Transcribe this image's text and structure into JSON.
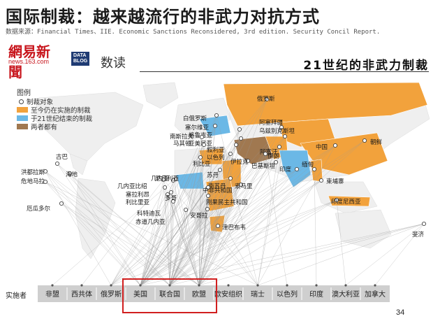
{
  "header": {
    "title": "国际制裁：越来越流行的非武力对抗方式",
    "source": "数据来源：Financial Times、IIE. Economic Sanctions Reconsidered, 3rd edition. Security Concil Report.",
    "subtitle": "21世纪的非武力制裁"
  },
  "brand": {
    "netease_cn": "網易新聞",
    "netease_en": "news.163.com",
    "datablog_line1": "DATA",
    "datablog_line2": "BLOG",
    "shudu": "数读"
  },
  "colors": {
    "ongoing": "#f2a23c",
    "ended": "#6bb8e6",
    "both": "#a07850",
    "land": "#efefef",
    "implementer_bar": "#cfcfcf",
    "highlight": "#d11f1f"
  },
  "legend": {
    "title": "图例",
    "target_label": "制裁对象",
    "items": [
      {
        "label": "至今仍在实施的制裁",
        "color": "#f2a23c"
      },
      {
        "label": "于21世纪结束的制裁",
        "color": "#6bb8e6"
      },
      {
        "label": "两者都有",
        "color": "#a07850"
      }
    ]
  },
  "chart_data": {
    "type": "network",
    "title": "21世纪的非武力制裁",
    "implementers_label": "实施者",
    "implementers": [
      "非盟",
      "西共体",
      "俄罗斯",
      "美国",
      "联合国",
      "欧盟",
      "欧安组织",
      "瑞士",
      "以色列",
      "印度",
      "澳大利亚",
      "加拿大"
    ],
    "highlighted_implementers": [
      "美国",
      "联合国",
      "欧盟"
    ],
    "targets": [
      {
        "name": "俄罗斯",
        "status": "ongoing"
      },
      {
        "name": "白俄罗斯",
        "status": "ongoing"
      },
      {
        "name": "塞尔维亚",
        "status": "ended"
      },
      {
        "name": "格鲁吉亚",
        "status": "ended"
      },
      {
        "name": "亚美尼亚",
        "status": "ended"
      },
      {
        "name": "阿塞拜疆",
        "status": "ended"
      },
      {
        "name": "乌兹别克斯坦",
        "status": "ongoing"
      },
      {
        "name": "南斯拉夫",
        "status": "ended"
      },
      {
        "name": "马其顿",
        "status": "ended"
      },
      {
        "name": "叙利亚",
        "status": "ongoing"
      },
      {
        "name": "以色列",
        "status": "ongoing"
      },
      {
        "name": "阿富汗",
        "status": "both"
      },
      {
        "name": "伊拉克",
        "status": "both"
      },
      {
        "name": "伊朗",
        "status": "ongoing"
      },
      {
        "name": "巴基斯坦",
        "status": "ended"
      },
      {
        "name": "印度",
        "status": "ended"
      },
      {
        "name": "中国",
        "status": "ongoing"
      },
      {
        "name": "朝鲜",
        "status": "ongoing"
      },
      {
        "name": "缅甸",
        "status": "ongoing"
      },
      {
        "name": "柬埔寨",
        "status": "ended"
      },
      {
        "name": "印度尼西亚",
        "status": "ongoing"
      },
      {
        "name": "斐济",
        "status": "ended"
      },
      {
        "name": "利比亚",
        "status": "ongoing"
      },
      {
        "name": "苏丹",
        "status": "ongoing"
      },
      {
        "name": "南苏丹",
        "status": "ongoing"
      },
      {
        "name": "中非共和国",
        "status": "ongoing"
      },
      {
        "name": "刚果民主共和国",
        "status": "ongoing"
      },
      {
        "name": "索马里",
        "status": "ongoing"
      },
      {
        "name": "安哥拉",
        "status": "ended"
      },
      {
        "name": "津巴布韦",
        "status": "ongoing"
      },
      {
        "name": "几内亚",
        "status": "ongoing"
      },
      {
        "name": "几内亚比绍",
        "status": "ongoing"
      },
      {
        "name": "塞拉利昂",
        "status": "ended"
      },
      {
        "name": "利比里亚",
        "status": "ongoing"
      },
      {
        "name": "科特迪瓦",
        "status": "ongoing"
      },
      {
        "name": "赤道几内亚",
        "status": "ongoing"
      },
      {
        "name": "尼日利亚",
        "status": "ended"
      },
      {
        "name": "多哥",
        "status": "ended"
      },
      {
        "name": "古巴",
        "status": "ongoing"
      },
      {
        "name": "海地",
        "status": "ended"
      },
      {
        "name": "洪都拉斯",
        "status": "ended"
      },
      {
        "name": "危地马拉",
        "status": "ended"
      },
      {
        "name": "厄瓜多尔",
        "status": "ended"
      }
    ]
  },
  "page_number": "34"
}
